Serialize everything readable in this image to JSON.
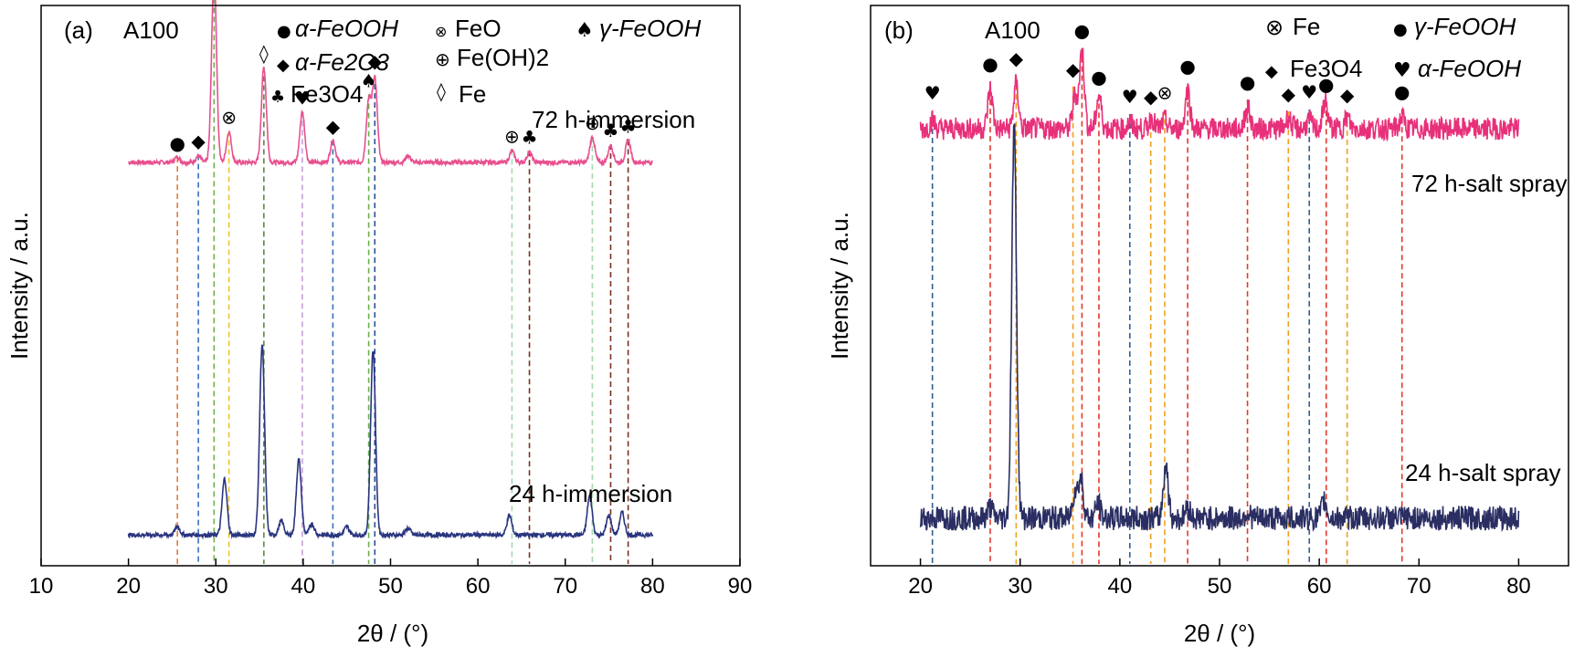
{
  "chart_data": [
    {
      "type": "line",
      "panel_label": "(a)",
      "sample": "A100",
      "xlabel": "2θ / (°)",
      "ylabel": "Intensity / a.u.",
      "xlim": [
        10,
        90
      ],
      "xticks": [
        10,
        20,
        30,
        40,
        50,
        60,
        70,
        80,
        90
      ],
      "legend": [
        {
          "symbol": "●",
          "label": "α-FeOOH"
        },
        {
          "symbol": "⊗",
          "label": "FeO"
        },
        {
          "symbol": "♠",
          "label": "γ-FeOOH"
        },
        {
          "symbol": "◆",
          "label": "α-Fe2O3"
        },
        {
          "symbol": "⊕",
          "label": "Fe(OH)2"
        },
        {
          "symbol": "♣",
          "label": "Fe3O4"
        },
        {
          "symbol": "◊",
          "label": "Fe"
        }
      ],
      "series": [
        {
          "name": "72 h-immersion",
          "color": "#e8508f",
          "baseline": 0.72,
          "peaks": [
            [
              25.6,
              0.01
            ],
            [
              28.0,
              0.012
            ],
            [
              29.8,
              0.34
            ],
            [
              31.5,
              0.055
            ],
            [
              35.5,
              0.17
            ],
            [
              39.9,
              0.09
            ],
            [
              43.4,
              0.04
            ],
            [
              47.5,
              0.11
            ],
            [
              48.2,
              0.15
            ],
            [
              52.0,
              0.012
            ],
            [
              63.9,
              0.02
            ],
            [
              65.9,
              0.018
            ],
            [
              73.1,
              0.045
            ],
            [
              75.2,
              0.03
            ],
            [
              77.2,
              0.04
            ]
          ]
        },
        {
          "name": "24 h-immersion",
          "color": "#2a3580",
          "baseline": 0.055,
          "peaks": [
            [
              25.6,
              0.015
            ],
            [
              31.0,
              0.1
            ],
            [
              35.3,
              0.34
            ],
            [
              37.5,
              0.025
            ],
            [
              39.5,
              0.135
            ],
            [
              41.0,
              0.02
            ],
            [
              45.0,
              0.015
            ],
            [
              48.0,
              0.33
            ],
            [
              52.0,
              0.012
            ],
            [
              63.6,
              0.035
            ],
            [
              72.8,
              0.07
            ],
            [
              75.0,
              0.035
            ],
            [
              76.5,
              0.04
            ]
          ]
        }
      ],
      "reference_lines": [
        {
          "x": 25.6,
          "color": "#e07a3a",
          "symbol": "●"
        },
        {
          "x": 28.0,
          "color": "#3a6fc0",
          "symbol": "◆"
        },
        {
          "x": 29.8,
          "color": "#6ab04c",
          "symbol": "♠"
        },
        {
          "x": 31.5,
          "color": "#e8c530",
          "symbol": "⊗"
        },
        {
          "x": 35.5,
          "color": "#5a8a3a",
          "symbol": "◊"
        },
        {
          "x": 39.9,
          "color": "#c8a0d8",
          "symbol": "♥"
        },
        {
          "x": 43.4,
          "color": "#3a6fc0",
          "symbol": "◆"
        },
        {
          "x": 47.5,
          "color": "#6ab04c",
          "symbol": "♠"
        },
        {
          "x": 48.2,
          "color": "#2a5090",
          "symbol": "◆"
        },
        {
          "x": 63.9,
          "color": "#a8d8b0",
          "symbol": "⊕"
        },
        {
          "x": 65.9,
          "color": "#7a3020",
          "symbol": "♣"
        },
        {
          "x": 73.1,
          "color": "#a8d8b0",
          "symbol": "⊕"
        },
        {
          "x": 75.2,
          "color": "#7a3020",
          "symbol": "♣"
        },
        {
          "x": 77.2,
          "color": "#7a3020",
          "symbol": "♣"
        }
      ]
    },
    {
      "type": "line",
      "panel_label": "(b)",
      "sample": "A100",
      "xlabel": "2θ / (°)",
      "ylabel": "Intensity / a.u.",
      "xlim": [
        15,
        85
      ],
      "xticks": [
        20,
        30,
        40,
        50,
        60,
        70,
        80
      ],
      "legend": [
        {
          "symbol": "⊗",
          "label": "Fe"
        },
        {
          "symbol": "●",
          "label": "γ-FeOOH"
        },
        {
          "symbol": "◆",
          "label": "Fe3O4"
        },
        {
          "symbol": "♥",
          "label": "α-FeOOH"
        }
      ],
      "series": [
        {
          "name": "72 h-salt spray",
          "color": "#e8307a",
          "baseline": 0.78,
          "noise": 0.02,
          "peaks": [
            [
              21.2,
              0.015
            ],
            [
              27.0,
              0.07
            ],
            [
              29.6,
              0.08
            ],
            [
              35.5,
              0.06
            ],
            [
              36.2,
              0.14
            ],
            [
              37.9,
              0.06
            ],
            [
              41.0,
              0.01
            ],
            [
              43.2,
              0.02
            ],
            [
              44.5,
              0.015
            ],
            [
              46.8,
              0.07
            ],
            [
              52.8,
              0.04
            ],
            [
              56.9,
              0.02
            ],
            [
              59.0,
              0.015
            ],
            [
              60.6,
              0.05
            ],
            [
              62.8,
              0.02
            ],
            [
              68.3,
              0.02
            ]
          ]
        },
        {
          "name": "24 h-salt spray",
          "color": "#2a2e62",
          "baseline": 0.085,
          "noise": 0.022,
          "peaks": [
            [
              27.0,
              0.02
            ],
            [
              29.4,
              0.7
            ],
            [
              35.5,
              0.05
            ],
            [
              36.1,
              0.07
            ],
            [
              37.8,
              0.025
            ],
            [
              44.6,
              0.095
            ],
            [
              46.8,
              0.02
            ],
            [
              52.8,
              0.01
            ],
            [
              60.5,
              0.03
            ]
          ]
        }
      ],
      "reference_lines": [
        {
          "x": 21.2,
          "color": "#2f5f8f",
          "symbol": "♥"
        },
        {
          "x": 27.0,
          "color": "#e03a2f",
          "symbol": "●"
        },
        {
          "x": 29.6,
          "color": "#f0a020",
          "symbol": "◆"
        },
        {
          "x": 35.3,
          "color": "#f0a020",
          "symbol": "◆"
        },
        {
          "x": 36.2,
          "color": "#e03a2f",
          "symbol": "●"
        },
        {
          "x": 37.9,
          "color": "#e03a2f",
          "symbol": "●"
        },
        {
          "x": 41.0,
          "color": "#2f5f8f",
          "symbol": "♥"
        },
        {
          "x": 43.1,
          "color": "#f0a020",
          "symbol": "◆"
        },
        {
          "x": 44.5,
          "color": "#f0a020",
          "symbol": "⊗"
        },
        {
          "x": 46.8,
          "color": "#e03a2f",
          "symbol": "●"
        },
        {
          "x": 52.8,
          "color": "#e03a2f",
          "symbol": "●"
        },
        {
          "x": 56.9,
          "color": "#f0a020",
          "symbol": "◆"
        },
        {
          "x": 59.0,
          "color": "#2f5f8f",
          "symbol": "♥"
        },
        {
          "x": 60.7,
          "color": "#e03a2f",
          "symbol": "●"
        },
        {
          "x": 62.8,
          "color": "#f0a020",
          "symbol": "◆"
        },
        {
          "x": 68.3,
          "color": "#e03a2f",
          "symbol": "●"
        }
      ]
    }
  ]
}
